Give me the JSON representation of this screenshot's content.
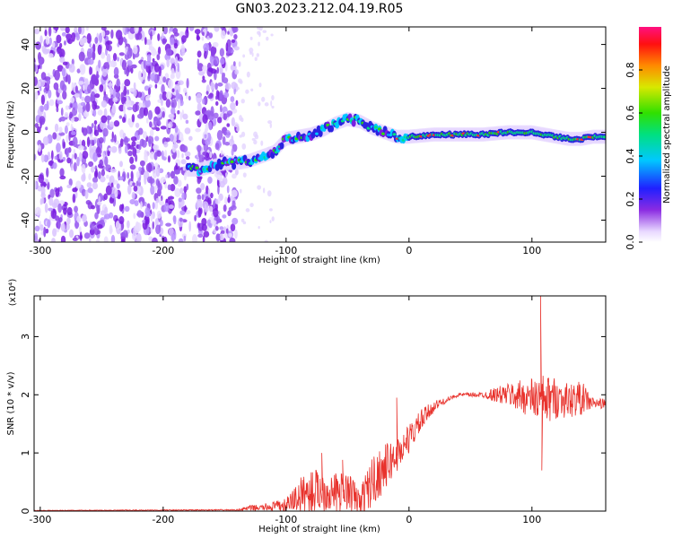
{
  "title": "GN03.2023.212.04.19.R05",
  "chart_data": [
    {
      "type": "heatmap",
      "xlabel": "Height of straight line (km)",
      "ylabel": "Frequency (Hz)",
      "xlim": [
        -305,
        160
      ],
      "ylim": [
        -50,
        48
      ],
      "x_ticks": [
        -300,
        -200,
        -100,
        0,
        100
      ],
      "y_ticks": [
        -40,
        -20,
        0,
        20,
        40
      ],
      "colorbar": {
        "label": "Normalized spectral amplitude",
        "range": [
          0,
          1
        ],
        "ticks": [
          "0.0",
          "0.2",
          "0.4",
          "0.6",
          "0.8"
        ]
      },
      "ridge": {
        "x": [
          -180,
          -170,
          -150,
          -140,
          -130,
          -120,
          -110,
          -100,
          -90,
          -80,
          -70,
          -60,
          -50,
          -40,
          -30,
          -20,
          -10,
          0,
          20,
          40,
          60,
          80,
          100,
          110,
          120,
          130,
          140,
          150,
          160
        ],
        "y": [
          -17,
          -17,
          -14,
          -14,
          -13,
          -11,
          -9,
          -3,
          -2,
          -1,
          1,
          4,
          6,
          5,
          2,
          0,
          -2,
          -2,
          -1,
          -1,
          -1,
          0,
          0,
          -1,
          -2,
          -3,
          -3,
          -2,
          -2
        ]
      },
      "noise_region_x": [
        -305,
        -140
      ]
    },
    {
      "type": "line",
      "xlabel": "Height of straight line (km)",
      "ylabel": "SNR (10 * v/v)",
      "y_multiplier": "(x10⁴)",
      "xlim": [
        -305,
        160
      ],
      "ylim": [
        0,
        3.7
      ],
      "x_ticks": [
        -300,
        -200,
        -100,
        0,
        100
      ],
      "y_ticks": [
        0,
        1,
        2,
        3
      ],
      "color": "#e8322c",
      "envelope": {
        "x": [
          -305,
          -140,
          -130,
          -120,
          -100,
          -90,
          -80,
          -70,
          -60,
          -50,
          -40,
          -30,
          -20,
          -10,
          0,
          10,
          20,
          30,
          40,
          60,
          80,
          100,
          110,
          120,
          130,
          140,
          150,
          160
        ],
        "mean": [
          0.01,
          0.02,
          0.05,
          0.06,
          0.1,
          0.25,
          0.35,
          0.35,
          0.3,
          0.35,
          0.15,
          0.5,
          0.75,
          0.95,
          1.25,
          1.55,
          1.8,
          1.9,
          2.0,
          2.0,
          2.0,
          1.95,
          1.9,
          1.95,
          1.9,
          1.95,
          1.85,
          1.85
        ],
        "spread": [
          0.005,
          0.01,
          0.05,
          0.05,
          0.12,
          0.3,
          0.4,
          0.35,
          0.35,
          0.35,
          0.25,
          0.45,
          0.4,
          0.3,
          0.25,
          0.2,
          0.1,
          0.04,
          0.03,
          0.05,
          0.2,
          0.35,
          0.45,
          0.35,
          0.3,
          0.3,
          0.1,
          0.08
        ]
      },
      "peaks": [
        {
          "x": -71,
          "y": 1.0
        },
        {
          "x": -54,
          "y": 0.88
        },
        {
          "x": -10,
          "y": 1.95
        },
        {
          "x": 107,
          "y": 3.7
        },
        {
          "x": 108,
          "y": 0.7
        }
      ]
    }
  ]
}
